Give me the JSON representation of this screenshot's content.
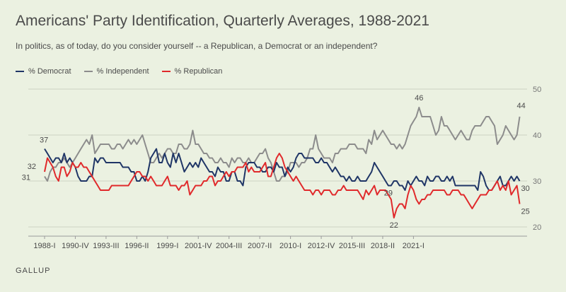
{
  "chart_data": {
    "type": "line",
    "title": "Americans' Party Identification, Quarterly Averages, 1988-2021",
    "subtitle": "In politics, as of today, do you consider yourself -- a Republican, a Democrat or an independent?",
    "source": "GALLUP",
    "x_tick_labels": [
      "1988-I",
      "1990-IV",
      "1993-III",
      "1996-II",
      "1999-I",
      "2001-IV",
      "2004-III",
      "2007-II",
      "2010-I",
      "2012-IV",
      "2015-III",
      "2018-II",
      "2021-I"
    ],
    "ylim": [
      20,
      50
    ],
    "y_ticks": [
      20,
      30,
      40,
      50
    ],
    "grid": true,
    "legend_position": "top-left",
    "series": [
      {
        "name": "% Democrat",
        "color": "#1f3566",
        "values": [
          37,
          36,
          35,
          34,
          35,
          35,
          34,
          36,
          34,
          35,
          34,
          33,
          31,
          30,
          30,
          30,
          31,
          31,
          35,
          34,
          35,
          35,
          34,
          34,
          34,
          34,
          34,
          34,
          33,
          33,
          33,
          32,
          32,
          30,
          30,
          31,
          30,
          32,
          35,
          36,
          37,
          34,
          34,
          36,
          34,
          33,
          36,
          34,
          36,
          34,
          32,
          33,
          34,
          33,
          34,
          33,
          35,
          34,
          33,
          32,
          32,
          31,
          33,
          32,
          32,
          30,
          30,
          32,
          32,
          30,
          30,
          29,
          33,
          34,
          34,
          34,
          33,
          33,
          32,
          32,
          33,
          33,
          32,
          34,
          33,
          33,
          31,
          33,
          32,
          33,
          35,
          36,
          36,
          35,
          35,
          35,
          35,
          34,
          34,
          35,
          34,
          34,
          33,
          32,
          33,
          32,
          31,
          31,
          30,
          31,
          30,
          30,
          31,
          30,
          30,
          30,
          31,
          32,
          34,
          33,
          32,
          31,
          30,
          29,
          29,
          30,
          30,
          29,
          29,
          28,
          30,
          29,
          30,
          31,
          30,
          30,
          29,
          31,
          30,
          30,
          31,
          31,
          30,
          30,
          31,
          30,
          31,
          29,
          29,
          29,
          29,
          29,
          29,
          29,
          29,
          28,
          32,
          31,
          29,
          28,
          28,
          29,
          30,
          31,
          29,
          29,
          30,
          31,
          30,
          31,
          30
        ],
        "first_label": "37",
        "last_label": "30",
        "annotations": [
          {
            "label": "29",
            "quarter_index": 123
          }
        ]
      },
      {
        "name": "% Independent",
        "color": "#8c8c8c",
        "values": [
          31,
          30,
          32,
          33,
          33,
          34,
          34,
          35,
          34,
          33,
          34,
          35,
          36,
          37,
          38,
          39,
          38,
          40,
          36,
          37,
          38,
          38,
          38,
          38,
          37,
          37,
          38,
          38,
          37,
          38,
          39,
          38,
          39,
          38,
          39,
          40,
          38,
          36,
          34,
          34,
          35,
          36,
          35,
          36,
          37,
          37,
          36,
          36,
          38,
          38,
          37,
          37,
          38,
          41,
          38,
          38,
          37,
          36,
          36,
          35,
          35,
          34,
          34,
          35,
          34,
          34,
          33,
          35,
          34,
          35,
          35,
          34,
          34,
          35,
          34,
          34,
          35,
          36,
          36,
          37,
          35,
          34,
          32,
          30,
          30,
          31,
          31,
          32,
          34,
          34,
          34,
          33,
          34,
          34,
          35,
          37,
          37,
          40,
          37,
          36,
          35,
          35,
          35,
          34,
          36,
          36,
          37,
          37,
          37,
          38,
          38,
          38,
          37,
          37,
          37,
          36,
          39,
          38,
          41,
          39,
          40,
          41,
          40,
          39,
          38,
          38,
          37,
          38,
          37,
          38,
          40,
          42,
          43,
          44,
          46,
          44,
          44,
          44,
          44,
          42,
          40,
          41,
          44,
          42,
          42,
          41,
          40,
          39,
          40,
          41,
          40,
          39,
          39,
          41,
          42,
          42,
          42,
          43,
          44,
          44,
          43,
          42,
          38,
          39,
          40,
          42,
          41,
          40,
          39,
          40,
          44
        ],
        "first_label": "31",
        "last_label": "44",
        "annotations": [
          {
            "label": "46",
            "quarter_index": 134
          }
        ]
      },
      {
        "name": "% Republican",
        "color": "#e0292b",
        "values": [
          32,
          35,
          34,
          33,
          31,
          30,
          33,
          33,
          31,
          32,
          34,
          33,
          33,
          34,
          33,
          33,
          32,
          31,
          30,
          29,
          28,
          28,
          28,
          28,
          29,
          29,
          29,
          29,
          29,
          29,
          29,
          30,
          31,
          32,
          32,
          31,
          31,
          30,
          31,
          30,
          29,
          29,
          29,
          30,
          31,
          29,
          29,
          29,
          28,
          29,
          29,
          30,
          27,
          28,
          29,
          29,
          29,
          30,
          30,
          31,
          31,
          29,
          30,
          30,
          31,
          32,
          31,
          32,
          32,
          33,
          33,
          33,
          34,
          32,
          33,
          32,
          32,
          32,
          33,
          34,
          31,
          31,
          33,
          35,
          36,
          35,
          33,
          32,
          31,
          30,
          31,
          30,
          29,
          28,
          28,
          28,
          27,
          28,
          28,
          27,
          28,
          28,
          28,
          27,
          27,
          28,
          28,
          29,
          28,
          28,
          28,
          28,
          28,
          27,
          26,
          28,
          27,
          28,
          29,
          27,
          28,
          28,
          28,
          27,
          26,
          22,
          24,
          25,
          25,
          24,
          27,
          29,
          28,
          26,
          25,
          26,
          26,
          27,
          27,
          28,
          28,
          28,
          28,
          28,
          27,
          27,
          28,
          28,
          28,
          27,
          27,
          26,
          25,
          24,
          25,
          26,
          27,
          27,
          27,
          28,
          28,
          29,
          30,
          28,
          29,
          28,
          30,
          27,
          28,
          29,
          25
        ],
        "first_label": "32",
        "last_label": "25",
        "annotations": [
          {
            "label": "22",
            "quarter_index": 125
          }
        ]
      }
    ]
  }
}
